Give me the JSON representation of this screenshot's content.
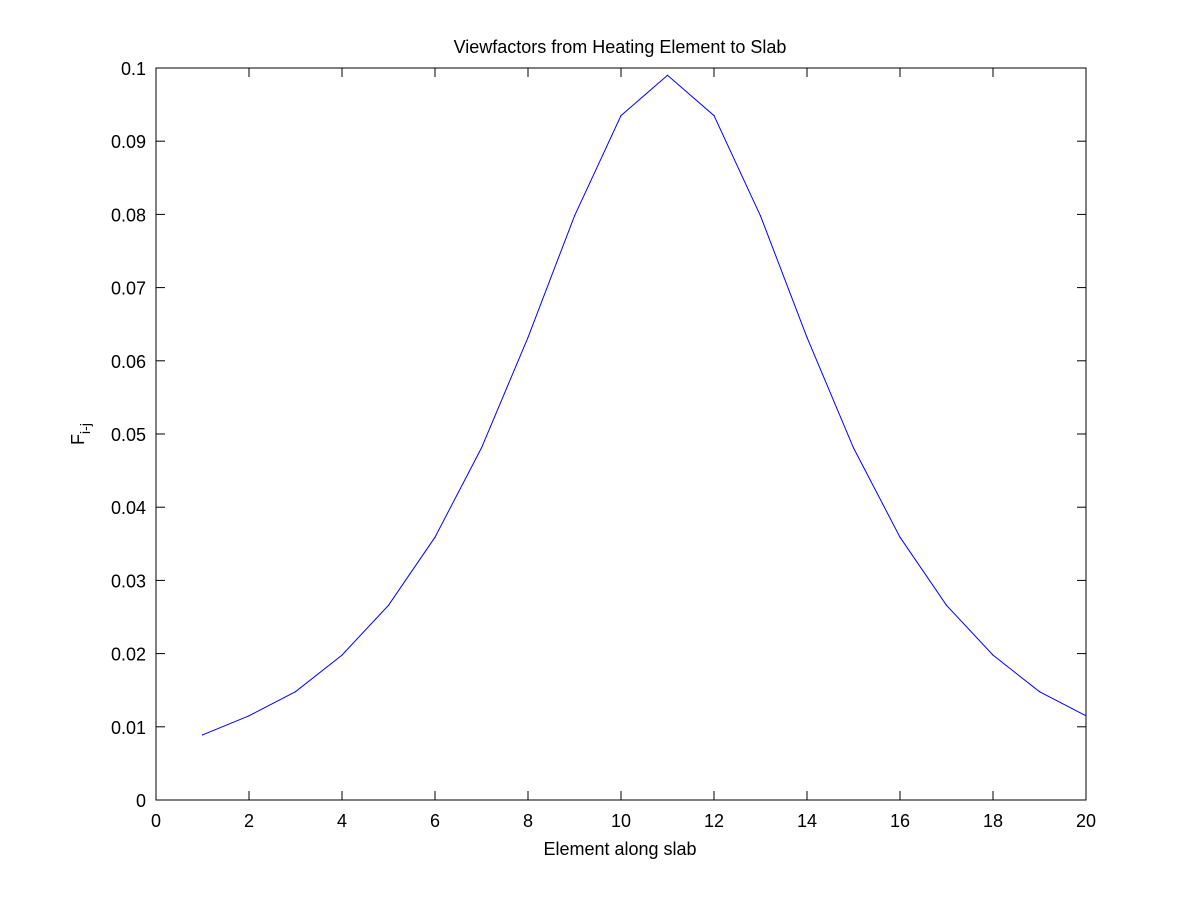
{
  "chart_data": {
    "type": "line",
    "title": "Viewfactors from Heating Element to Slab",
    "xlabel": "Element along slab",
    "ylabel_main": "F",
    "ylabel_sub": "i-j",
    "xlim": [
      0,
      20
    ],
    "ylim": [
      0,
      0.1
    ],
    "xticks": [
      "0",
      "2",
      "4",
      "6",
      "8",
      "10",
      "12",
      "14",
      "16",
      "18",
      "20"
    ],
    "yticks": [
      "0",
      "0.01",
      "0.02",
      "0.03",
      "0.04",
      "0.05",
      "0.06",
      "0.07",
      "0.08",
      "0.09",
      "0.1"
    ],
    "grid": false,
    "legend": "none",
    "series": [
      {
        "color": "#0000ff",
        "x": [
          1,
          2,
          3,
          4,
          5,
          6,
          7,
          8,
          9,
          10,
          11,
          12,
          13,
          14,
          15,
          16,
          17,
          18,
          19,
          20
        ],
        "y": [
          0.0089,
          0.0115,
          0.0148,
          0.0198,
          0.0266,
          0.0359,
          0.0481,
          0.0632,
          0.0798,
          0.0935,
          0.099,
          0.0935,
          0.0798,
          0.0632,
          0.0481,
          0.0359,
          0.0266,
          0.0198,
          0.0148,
          0.0115
        ]
      }
    ]
  }
}
